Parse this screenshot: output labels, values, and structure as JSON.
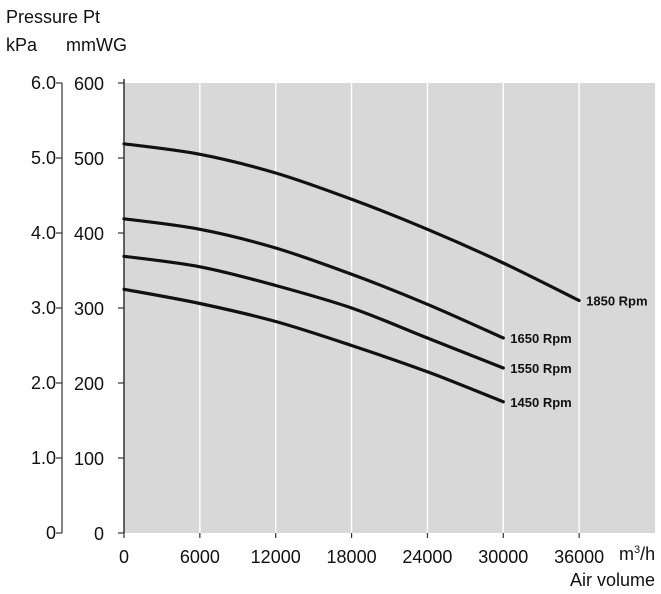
{
  "chart_data": {
    "type": "line",
    "title": "",
    "ylabel": "Pressure Pt",
    "ylabel_units": [
      "kPa",
      "mmWG"
    ],
    "xlabel": "Air volume",
    "xunit_base": "m",
    "xunit_exp": "3",
    "xunit_tail": "/h",
    "xlim": [
      0,
      42000
    ],
    "ylim": [
      0,
      600
    ],
    "y2lim": [
      0,
      6.0
    ],
    "x_ticks": [
      0,
      6000,
      12000,
      18000,
      24000,
      30000,
      36000
    ],
    "y_ticks_mmwg": [
      0,
      100,
      200,
      300,
      400,
      500,
      600
    ],
    "y_ticks_kpa": [
      "0",
      "1.0",
      "2.0",
      "3.0",
      "4.0",
      "5.0",
      "6.0"
    ],
    "grid": true,
    "plot_background": "#d8d8d8",
    "line_color": "#111111",
    "series": [
      {
        "name": "1850 Rpm",
        "x": [
          0,
          6000,
          12000,
          18000,
          24000,
          30000,
          36000
        ],
        "y": [
          519,
          505,
          480,
          445,
          405,
          360,
          310
        ]
      },
      {
        "name": "1650 Rpm",
        "x": [
          0,
          6000,
          12000,
          18000,
          24000,
          30000
        ],
        "y": [
          419,
          405,
          380,
          345,
          305,
          260
        ]
      },
      {
        "name": "1550 Rpm",
        "x": [
          0,
          6000,
          12000,
          18000,
          24000,
          30000
        ],
        "y": [
          369,
          355,
          330,
          300,
          260,
          220
        ]
      },
      {
        "name": "1450 Rpm",
        "x": [
          0,
          6000,
          12000,
          18000,
          24000,
          30000
        ],
        "y": [
          325,
          306,
          282,
          250,
          215,
          175
        ]
      }
    ]
  }
}
